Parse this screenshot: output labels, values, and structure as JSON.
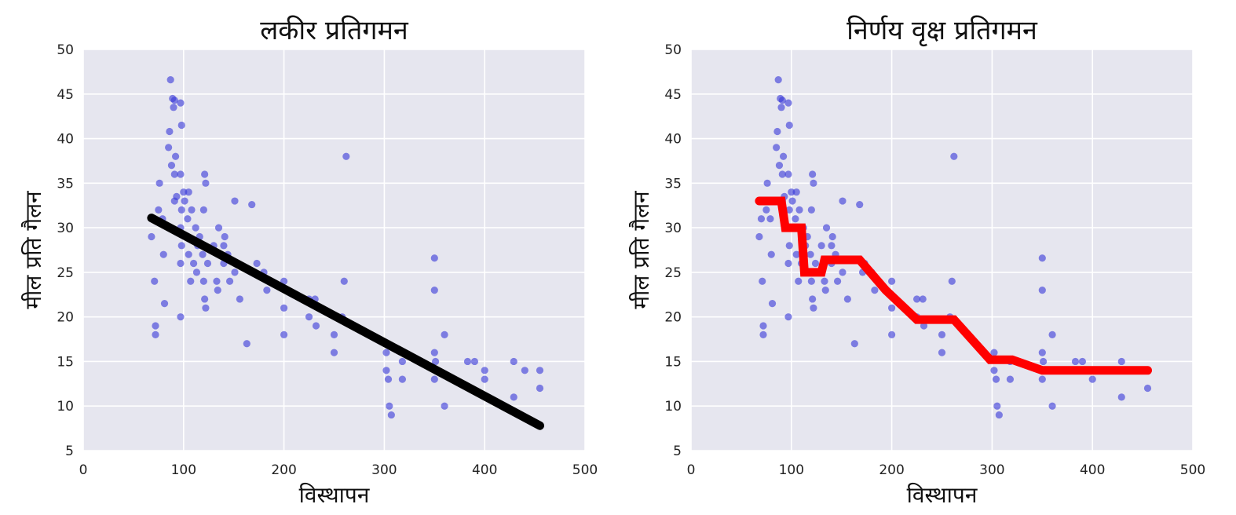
{
  "chart_data": [
    {
      "type": "scatter",
      "title": "लकीर प्रतिगमन",
      "xlabel": "विस्थापन",
      "ylabel": "मील प्रति गैलन",
      "xlim": [
        0,
        500
      ],
      "ylim": [
        5,
        50
      ],
      "xticks": [
        0,
        100,
        200,
        300,
        400,
        500
      ],
      "yticks": [
        5,
        10,
        15,
        20,
        25,
        30,
        35,
        40,
        45,
        50
      ],
      "grid": true,
      "background": "#e6e6ef",
      "point_color": "#3a3ad8",
      "series": [
        {
          "kind": "scatter",
          "points": [
            [
              68,
              29
            ],
            [
              70,
              31
            ],
            [
              71,
              24
            ],
            [
              72,
              19
            ],
            [
              72,
              18
            ],
            [
              75,
              32
            ],
            [
              76,
              35
            ],
            [
              79,
              31
            ],
            [
              80,
              27
            ],
            [
              81,
              21.5
            ],
            [
              85,
              39
            ],
            [
              86,
              40.8
            ],
            [
              87,
              46.6
            ],
            [
              88,
              37
            ],
            [
              89,
              44.5
            ],
            [
              90,
              43.5
            ],
            [
              91,
              36
            ],
            [
              91,
              33
            ],
            [
              91,
              44.3
            ],
            [
              92,
              38
            ],
            [
              93,
              33.5
            ],
            [
              97,
              44
            ],
            [
              97,
              36
            ],
            [
              97,
              30
            ],
            [
              97,
              26
            ],
            [
              97,
              20
            ],
            [
              98,
              28
            ],
            [
              98,
              32
            ],
            [
              98,
              41.5
            ],
            [
              100,
              34
            ],
            [
              101,
              33
            ],
            [
              104,
              31
            ],
            [
              105,
              27
            ],
            [
              105,
              34
            ],
            [
              107,
              24
            ],
            [
              108,
              32
            ],
            [
              110,
              26
            ],
            [
              112,
              30
            ],
            [
              113,
              25
            ],
            [
              114,
              28
            ],
            [
              116,
              29
            ],
            [
              119,
              27
            ],
            [
              120,
              24
            ],
            [
              120,
              32
            ],
            [
              121,
              22
            ],
            [
              121,
              36
            ],
            [
              122,
              21
            ],
            [
              122,
              35
            ],
            [
              124,
              26
            ],
            [
              130,
              28
            ],
            [
              133,
              24
            ],
            [
              134,
              23
            ],
            [
              135,
              30
            ],
            [
              140,
              26
            ],
            [
              140,
              28
            ],
            [
              141,
              29
            ],
            [
              144,
              27
            ],
            [
              146,
              24
            ],
            [
              151,
              25
            ],
            [
              151,
              33
            ],
            [
              156,
              22
            ],
            [
              163,
              17
            ],
            [
              168,
              32.6
            ],
            [
              171,
              25
            ],
            [
              173,
              26
            ],
            [
              180,
              25
            ],
            [
              183,
              23
            ],
            [
              200,
              24
            ],
            [
              200,
              21
            ],
            [
              200,
              18
            ],
            [
              225,
              20
            ],
            [
              225,
              22
            ],
            [
              231,
              22
            ],
            [
              232,
              19
            ],
            [
              250,
              18
            ],
            [
              250,
              16
            ],
            [
              258,
              20
            ],
            [
              260,
              24
            ],
            [
              262,
              38
            ],
            [
              302,
              14
            ],
            [
              302,
              16
            ],
            [
              304,
              13
            ],
            [
              305,
              10
            ],
            [
              307,
              9
            ],
            [
              318,
              15
            ],
            [
              318,
              13
            ],
            [
              350,
              13
            ],
            [
              350,
              16
            ],
            [
              350,
              26.6
            ],
            [
              350,
              23
            ],
            [
              351,
              15
            ],
            [
              360,
              10
            ],
            [
              360,
              18
            ],
            [
              383,
              15
            ],
            [
              390,
              15
            ],
            [
              400,
              13
            ],
            [
              400,
              14
            ],
            [
              429,
              11
            ],
            [
              429,
              15
            ],
            [
              440,
              14
            ],
            [
              455,
              14
            ],
            [
              455,
              12
            ]
          ]
        },
        {
          "kind": "line",
          "name": "",
          "color": "#000000",
          "points": [
            [
              68,
              31.1
            ],
            [
              455,
              7.8
            ]
          ]
        }
      ]
    },
    {
      "type": "scatter",
      "title": "निर्णय वृक्ष प्रतिगमन",
      "xlabel": "विस्थापन",
      "ylabel": "मील प्रति गैलन",
      "xlim": [
        0,
        500
      ],
      "ylim": [
        5,
        50
      ],
      "xticks": [
        0,
        100,
        200,
        300,
        400,
        500
      ],
      "yticks": [
        5,
        10,
        15,
        20,
        25,
        30,
        35,
        40,
        45,
        50
      ],
      "grid": true,
      "background": "#e6e6ef",
      "point_color": "#3a3ad8",
      "series": [
        {
          "kind": "scatter",
          "points": [
            [
              68,
              29
            ],
            [
              70,
              31
            ],
            [
              71,
              24
            ],
            [
              72,
              19
            ],
            [
              72,
              18
            ],
            [
              75,
              32
            ],
            [
              76,
              35
            ],
            [
              79,
              31
            ],
            [
              80,
              27
            ],
            [
              81,
              21.5
            ],
            [
              85,
              39
            ],
            [
              86,
              40.8
            ],
            [
              87,
              46.6
            ],
            [
              88,
              37
            ],
            [
              89,
              44.5
            ],
            [
              90,
              43.5
            ],
            [
              91,
              36
            ],
            [
              91,
              33
            ],
            [
              91,
              44.3
            ],
            [
              92,
              38
            ],
            [
              93,
              33.5
            ],
            [
              97,
              44
            ],
            [
              97,
              36
            ],
            [
              97,
              30
            ],
            [
              97,
              26
            ],
            [
              97,
              20
            ],
            [
              98,
              28
            ],
            [
              98,
              32
            ],
            [
              98,
              41.5
            ],
            [
              100,
              34
            ],
            [
              101,
              33
            ],
            [
              104,
              31
            ],
            [
              105,
              27
            ],
            [
              105,
              34
            ],
            [
              107,
              24
            ],
            [
              108,
              32
            ],
            [
              110,
              26
            ],
            [
              112,
              30
            ],
            [
              113,
              25
            ],
            [
              114,
              28
            ],
            [
              116,
              29
            ],
            [
              119,
              27
            ],
            [
              120,
              24
            ],
            [
              120,
              32
            ],
            [
              121,
              22
            ],
            [
              121,
              36
            ],
            [
              122,
              21
            ],
            [
              122,
              35
            ],
            [
              124,
              26
            ],
            [
              130,
              28
            ],
            [
              133,
              24
            ],
            [
              134,
              23
            ],
            [
              135,
              30
            ],
            [
              140,
              26
            ],
            [
              140,
              28
            ],
            [
              141,
              29
            ],
            [
              144,
              27
            ],
            [
              146,
              24
            ],
            [
              151,
              25
            ],
            [
              151,
              33
            ],
            [
              156,
              22
            ],
            [
              163,
              17
            ],
            [
              168,
              32.6
            ],
            [
              171,
              25
            ],
            [
              173,
              26
            ],
            [
              180,
              25
            ],
            [
              183,
              23
            ],
            [
              200,
              24
            ],
            [
              200,
              21
            ],
            [
              200,
              18
            ],
            [
              225,
              20
            ],
            [
              225,
              22
            ],
            [
              231,
              22
            ],
            [
              232,
              19
            ],
            [
              250,
              18
            ],
            [
              250,
              16
            ],
            [
              258,
              20
            ],
            [
              260,
              24
            ],
            [
              262,
              38
            ],
            [
              302,
              14
            ],
            [
              302,
              16
            ],
            [
              304,
              13
            ],
            [
              305,
              10
            ],
            [
              307,
              9
            ],
            [
              318,
              15
            ],
            [
              318,
              13
            ],
            [
              350,
              13
            ],
            [
              350,
              16
            ],
            [
              350,
              26.6
            ],
            [
              350,
              23
            ],
            [
              351,
              15
            ],
            [
              360,
              10
            ],
            [
              360,
              18
            ],
            [
              383,
              15
            ],
            [
              390,
              15
            ],
            [
              400,
              13
            ],
            [
              400,
              14
            ],
            [
              429,
              11
            ],
            [
              429,
              15
            ],
            [
              440,
              14
            ],
            [
              455,
              14
            ],
            [
              455,
              12
            ]
          ]
        },
        {
          "kind": "line",
          "name": "",
          "color": "#ff0000",
          "points": [
            [
              68,
              33
            ],
            [
              90,
              33
            ],
            [
              94,
              30
            ],
            [
              110,
              30
            ],
            [
              113,
              25
            ],
            [
              130,
              25
            ],
            [
              133,
              26.4
            ],
            [
              168,
              26.4
            ],
            [
              194,
              23
            ],
            [
              225,
              19.7
            ],
            [
              262,
              19.7
            ],
            [
              298,
              15.2
            ],
            [
              320,
              15.2
            ],
            [
              350,
              14
            ],
            [
              455,
              14
            ]
          ]
        }
      ]
    }
  ]
}
